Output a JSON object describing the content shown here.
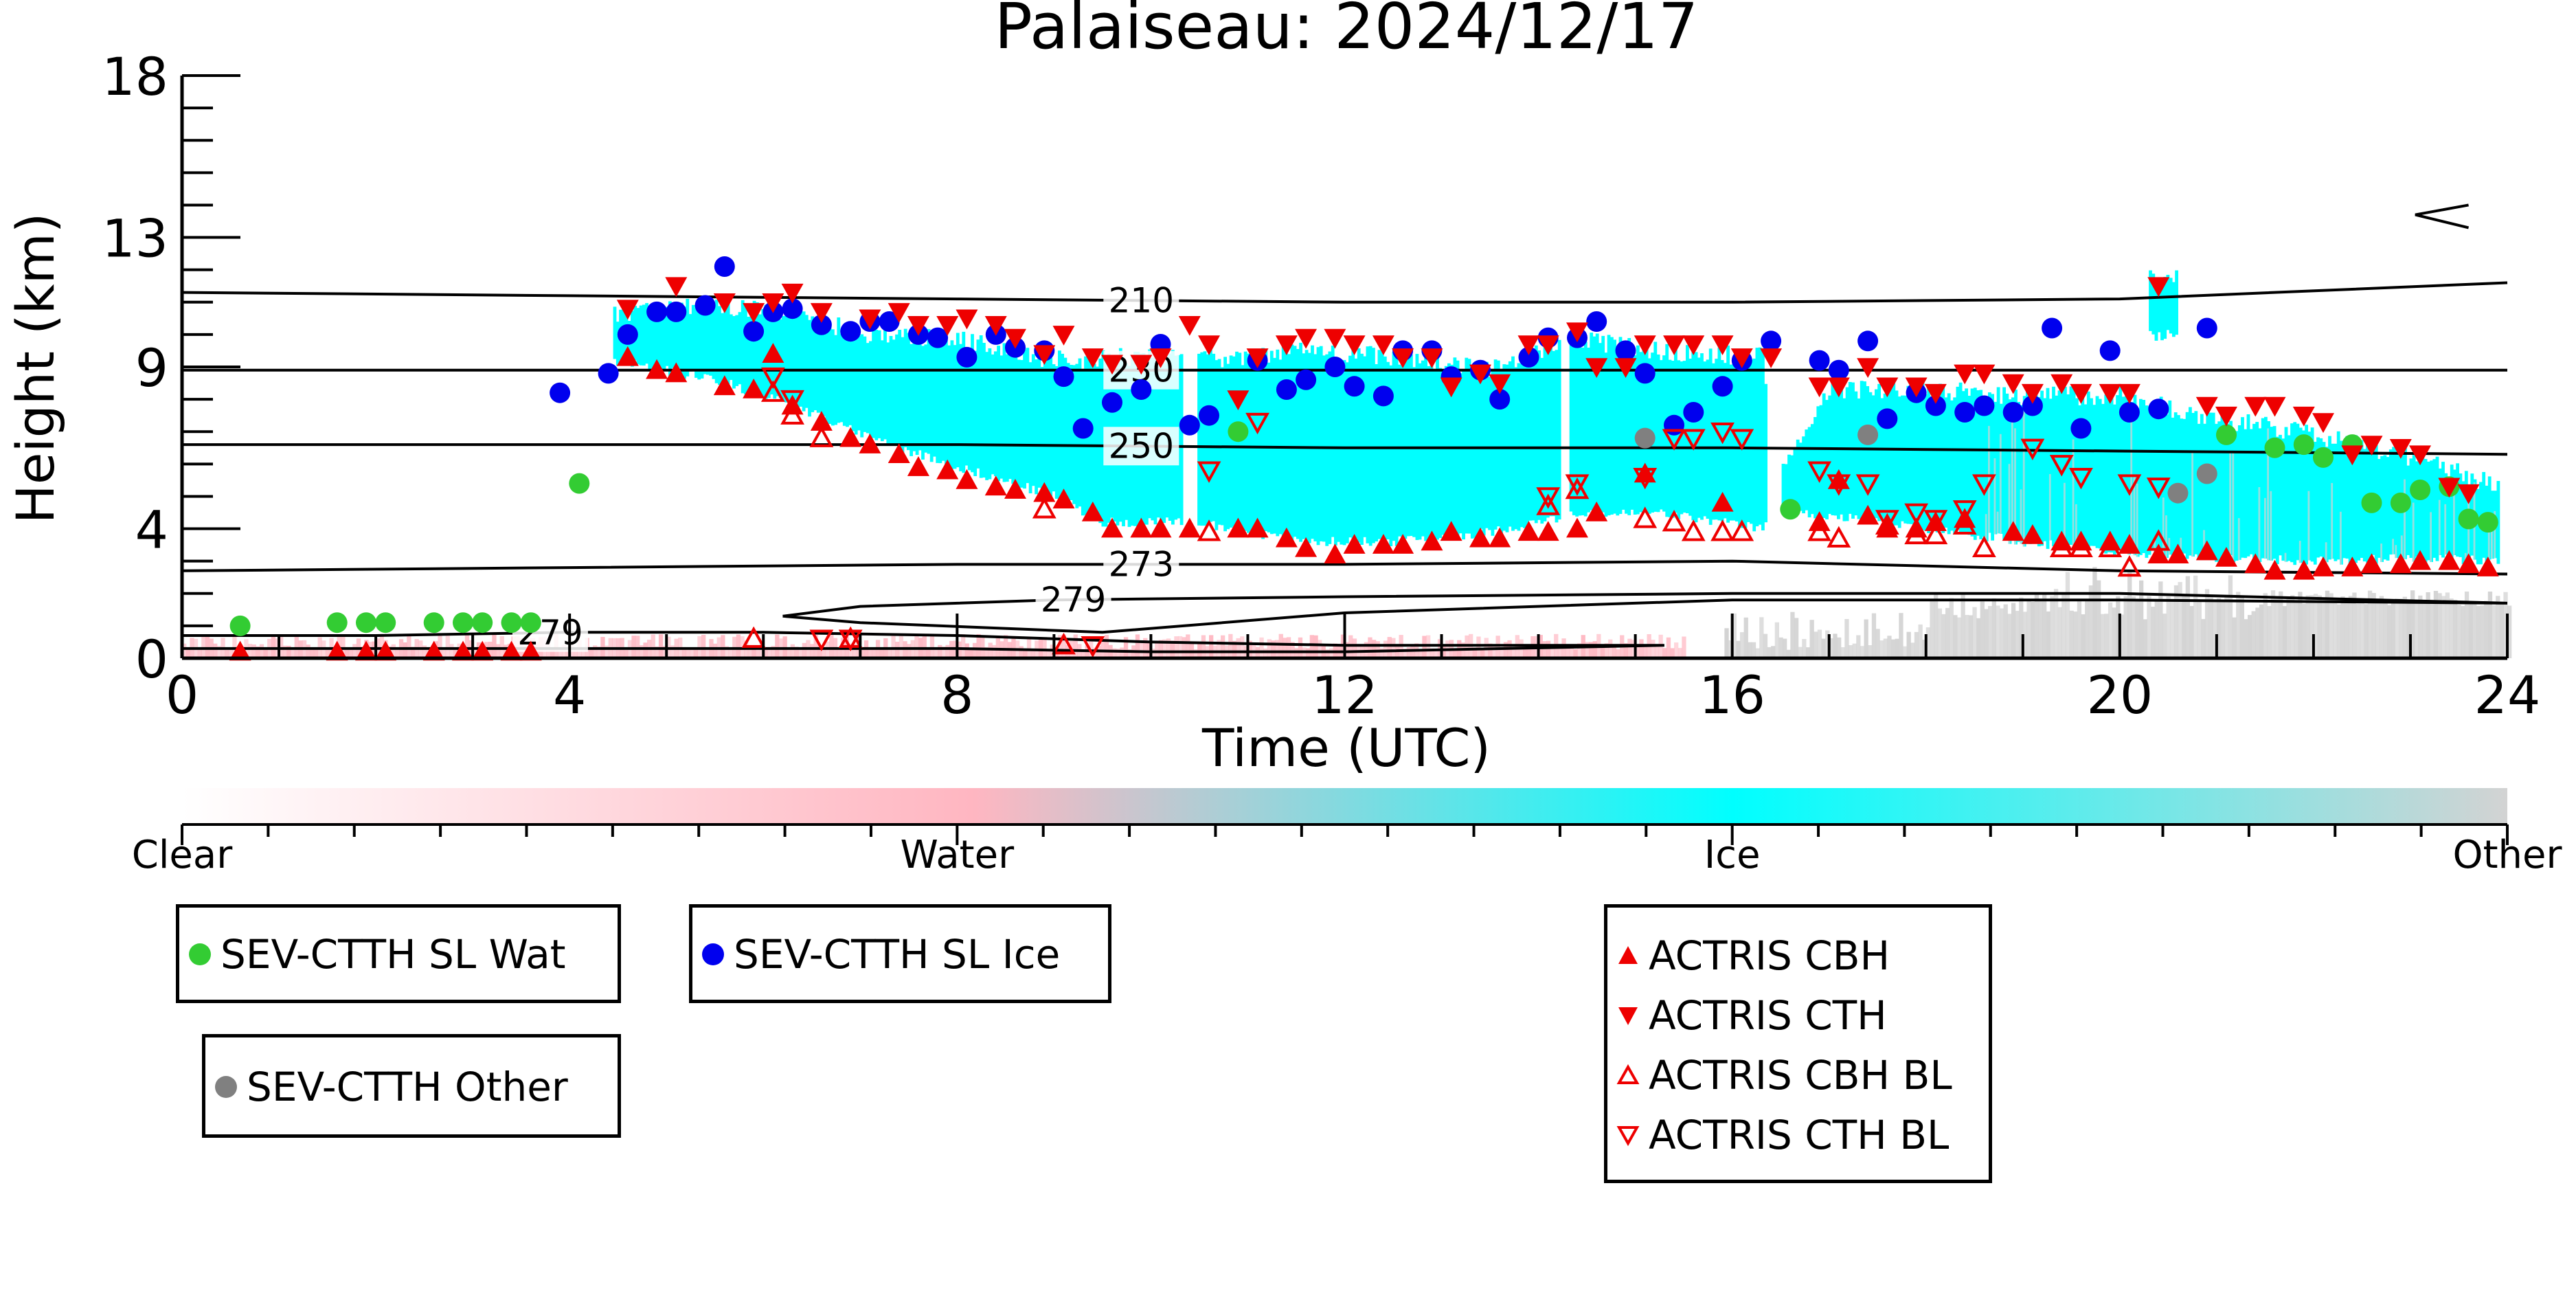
{
  "chart_data": {
    "type": "scatter",
    "title": "Palaiseau: 2024/12/17",
    "xlabel": "Time (UTC)",
    "ylabel": "Height (km)",
    "xlim": [
      0,
      24
    ],
    "ylim": [
      0,
      18
    ],
    "x_ticks": [
      0,
      4,
      8,
      12,
      16,
      20,
      24
    ],
    "y_ticks": [
      0,
      4,
      9,
      13,
      18
    ],
    "colorbar": {
      "labels": [
        "Clear",
        "Water",
        "Ice",
        "Other"
      ],
      "colors": [
        "#ffffff",
        "#ffb6c1",
        "#00ffff",
        "#d3d3d3"
      ]
    },
    "isotherms": [
      {
        "label": "210",
        "label_x": 9.9,
        "x": [
          0,
          4,
          8,
          12,
          16,
          20,
          24
        ],
        "y": [
          11.3,
          11.2,
          11.1,
          11.0,
          11.0,
          11.1,
          11.6
        ]
      },
      {
        "label": "230",
        "label_x": 9.9,
        "x": [
          0,
          4,
          8,
          12,
          16,
          20,
          24
        ],
        "y": [
          8.9,
          8.9,
          8.9,
          8.9,
          8.9,
          8.9,
          8.9
        ]
      },
      {
        "label": "250",
        "label_x": 9.9,
        "x": [
          0,
          4,
          8,
          12,
          16,
          20,
          24
        ],
        "y": [
          6.6,
          6.6,
          6.6,
          6.5,
          6.5,
          6.4,
          6.3
        ]
      },
      {
        "label": "273",
        "label_x": 9.9,
        "x": [
          0,
          4,
          8,
          12,
          16,
          20,
          24
        ],
        "y": [
          2.7,
          2.8,
          2.9,
          2.9,
          3.0,
          2.7,
          2.6
        ]
      },
      {
        "label": "279",
        "label_x": 9.2,
        "x": [
          6.2,
          7,
          9,
          12,
          16,
          20,
          24,
          20,
          16,
          12,
          9.5,
          7,
          6.2
        ],
        "y": [
          1.3,
          1.6,
          1.8,
          1.9,
          2.0,
          2.0,
          1.7,
          1.8,
          1.8,
          1.4,
          0.8,
          1.1,
          1.3
        ]
      },
      {
        "label": "279",
        "label_x": 3.8,
        "x": [
          0,
          2,
          4,
          6,
          8,
          10,
          12,
          15.3,
          12,
          10,
          8,
          6,
          4,
          2,
          0
        ],
        "y": [
          0.7,
          0.7,
          0.8,
          0.8,
          0.7,
          0.5,
          0.4,
          0.4,
          0.2,
          0.2,
          0.3,
          0.3,
          0.3,
          0.3,
          0.3
        ]
      }
    ],
    "series": [
      {
        "name": "SEV-CTTH SL Wat",
        "color": "#33cc33",
        "marker": "circle",
        "x": [
          0.6,
          1.6,
          1.9,
          2.1,
          2.6,
          2.9,
          3.1,
          3.4,
          3.6,
          4.1,
          10.9,
          16.6,
          21.1,
          21.6,
          21.9,
          22.1,
          22.4,
          22.6,
          22.9,
          23.1,
          23.4,
          23.6,
          23.8
        ],
        "y": [
          1.0,
          1.1,
          1.1,
          1.1,
          1.1,
          1.1,
          1.1,
          1.1,
          1.1,
          5.4,
          7.0,
          4.6,
          6.9,
          6.5,
          6.6,
          6.2,
          6.6,
          4.8,
          4.8,
          5.2,
          5.3,
          4.3,
          4.2
        ]
      },
      {
        "name": "SEV-CTTH SL Ice",
        "color": "#0000ee",
        "marker": "circle",
        "x": [
          3.9,
          4.4,
          4.6,
          4.9,
          5.1,
          5.4,
          5.6,
          5.9,
          6.1,
          6.3,
          6.6,
          6.9,
          7.1,
          7.3,
          7.6,
          7.8,
          8.1,
          8.4,
          8.6,
          8.9,
          9.1,
          9.3,
          9.6,
          9.9,
          10.1,
          10.4,
          10.6,
          11.1,
          11.4,
          11.6,
          11.9,
          12.1,
          12.4,
          12.6,
          12.9,
          13.1,
          13.4,
          13.6,
          13.9,
          14.1,
          14.4,
          14.6,
          14.9,
          15.1,
          15.4,
          15.6,
          15.9,
          16.1,
          16.4,
          16.9,
          17.1,
          17.4,
          17.6,
          17.9,
          18.1,
          18.4,
          18.6,
          18.9,
          19.1,
          19.3,
          19.6,
          19.9,
          20.1,
          20.4,
          20.9
        ],
        "y": [
          8.2,
          8.8,
          10.0,
          10.7,
          10.7,
          10.9,
          12.1,
          10.1,
          10.7,
          10.8,
          10.3,
          10.1,
          10.4,
          10.4,
          10.0,
          9.9,
          9.3,
          10.0,
          9.6,
          9.5,
          8.7,
          7.1,
          7.9,
          8.3,
          9.7,
          7.2,
          7.5,
          9.2,
          8.3,
          8.6,
          9.0,
          8.4,
          8.1,
          9.5,
          9.5,
          8.7,
          8.9,
          8.0,
          9.3,
          9.9,
          9.9,
          10.4,
          9.5,
          8.8,
          7.2,
          7.6,
          8.4,
          9.2,
          9.8,
          9.2,
          8.9,
          9.8,
          7.4,
          8.2,
          7.8,
          7.6,
          7.8,
          7.6,
          7.8,
          10.2,
          7.1,
          9.5,
          7.6,
          7.7,
          10.2
        ]
      },
      {
        "name": "SEV-CTTH Other",
        "color": "#808080",
        "marker": "circle",
        "x": [
          15.1,
          17.4,
          20.6,
          20.9
        ],
        "y": [
          6.8,
          6.9,
          5.1,
          5.7
        ]
      },
      {
        "name": "ACTRIS CBH",
        "color": "#ee0000",
        "marker": "triangle-up",
        "x": [
          0.6,
          1.6,
          1.9,
          2.1,
          2.6,
          2.9,
          3.1,
          3.4,
          3.6,
          4.6,
          4.9,
          5.1,
          5.6,
          5.9,
          6.1,
          6.3,
          6.6,
          6.9,
          7.1,
          7.4,
          7.6,
          7.9,
          8.1,
          8.4,
          8.6,
          8.9,
          9.1,
          9.4,
          9.6,
          9.9,
          10.1,
          10.4,
          10.9,
          11.1,
          11.4,
          11.6,
          11.9,
          12.1,
          12.4,
          12.6,
          12.9,
          13.1,
          13.4,
          13.6,
          13.9,
          14.1,
          14.4,
          14.6,
          15.1,
          15.9,
          16.9,
          17.1,
          17.4,
          17.6,
          17.9,
          18.1,
          18.4,
          18.9,
          19.1,
          19.4,
          19.6,
          19.9,
          20.1,
          20.4,
          20.6,
          20.9,
          21.1,
          21.4,
          21.6,
          21.9,
          22.1,
          22.4,
          22.6,
          22.9,
          23.1,
          23.4,
          23.6,
          23.8
        ],
        "y": [
          0.2,
          0.2,
          0.2,
          0.2,
          0.2,
          0.2,
          0.2,
          0.2,
          0.2,
          9.3,
          8.9,
          8.8,
          8.4,
          8.3,
          9.4,
          7.8,
          7.3,
          6.8,
          6.6,
          6.3,
          5.9,
          5.8,
          5.5,
          5.3,
          5.2,
          5.1,
          4.9,
          4.5,
          4.0,
          4.0,
          4.0,
          4.0,
          4.0,
          4.0,
          3.7,
          3.4,
          3.2,
          3.5,
          3.5,
          3.5,
          3.6,
          3.9,
          3.7,
          3.7,
          3.9,
          3.9,
          4.0,
          4.5,
          5.7,
          4.8,
          4.2,
          5.5,
          4.4,
          4.0,
          4.0,
          4.2,
          4.3,
          3.9,
          3.8,
          3.6,
          3.6,
          3.6,
          3.5,
          3.2,
          3.2,
          3.3,
          3.1,
          2.9,
          2.7,
          2.7,
          2.8,
          2.8,
          2.9,
          2.9,
          3.0,
          3.0,
          2.9,
          2.8
        ]
      },
      {
        "name": "ACTRIS CTH",
        "color": "#ee0000",
        "marker": "triangle-down",
        "x": [
          4.6,
          5.1,
          5.6,
          5.9,
          6.1,
          6.3,
          6.6,
          7.1,
          7.4,
          7.6,
          7.9,
          8.1,
          8.4,
          8.6,
          8.9,
          9.1,
          9.4,
          9.6,
          9.9,
          10.1,
          10.4,
          10.6,
          10.9,
          11.1,
          11.4,
          11.6,
          11.9,
          12.1,
          12.4,
          12.6,
          12.9,
          13.1,
          13.4,
          13.6,
          13.9,
          14.1,
          14.4,
          14.6,
          14.9,
          15.1,
          15.4,
          15.6,
          15.9,
          16.1,
          16.4,
          16.9,
          17.1,
          17.4,
          17.6,
          17.9,
          18.1,
          18.4,
          18.6,
          18.9,
          19.1,
          19.4,
          19.6,
          19.9,
          20.1,
          20.4,
          20.9,
          21.1,
          21.4,
          21.6,
          21.9,
          22.1,
          22.4,
          22.6,
          22.9,
          23.1,
          23.4,
          23.6
        ],
        "y": [
          10.8,
          11.5,
          11.0,
          10.7,
          11.0,
          11.3,
          10.7,
          10.5,
          10.7,
          10.3,
          10.3,
          10.5,
          10.3,
          9.9,
          9.4,
          10.0,
          9.3,
          9.1,
          9.1,
          9.3,
          10.3,
          9.7,
          8.0,
          9.3,
          9.7,
          9.9,
          9.9,
          9.7,
          9.7,
          9.3,
          9.3,
          8.4,
          8.8,
          8.5,
          9.7,
          9.7,
          10.1,
          9.0,
          9.0,
          9.7,
          9.7,
          9.7,
          9.7,
          9.3,
          9.3,
          8.4,
          8.4,
          9.0,
          8.4,
          8.4,
          8.2,
          8.8,
          8.8,
          8.5,
          8.2,
          8.5,
          8.2,
          8.2,
          8.2,
          11.5,
          7.8,
          7.5,
          7.8,
          7.8,
          7.5,
          7.3,
          6.3,
          6.6,
          6.5,
          6.3,
          5.3,
          5.1
        ]
      },
      {
        "name": "ACTRIS CBH BL",
        "color": "#ee0000",
        "marker": "triangle-up-open",
        "x": [
          5.9,
          6.1,
          6.3,
          6.6,
          6.9,
          8.9,
          9.1,
          10.6,
          14.1,
          14.4,
          15.1,
          15.4,
          15.6,
          15.9,
          16.1,
          16.9,
          17.1,
          17.6,
          17.9,
          18.1,
          18.4,
          18.6,
          19.4,
          19.6,
          19.9,
          20.1,
          20.4
        ],
        "y": [
          0.6,
          8.2,
          7.5,
          6.8,
          0.6,
          4.6,
          0.4,
          3.9,
          4.7,
          5.2,
          4.3,
          4.2,
          3.9,
          3.9,
          3.9,
          3.9,
          3.7,
          4.1,
          3.8,
          3.8,
          4.1,
          3.4,
          3.4,
          3.4,
          3.4,
          2.8,
          3.6
        ]
      },
      {
        "name": "ACTRIS CTH BL",
        "color": "#ee0000",
        "marker": "triangle-down-open",
        "x": [
          6.1,
          6.3,
          6.6,
          6.9,
          9.4,
          10.6,
          11.1,
          14.1,
          14.4,
          15.1,
          15.4,
          15.6,
          15.9,
          16.1,
          16.9,
          17.1,
          17.4,
          17.6,
          17.9,
          18.1,
          18.4,
          18.6,
          19.1,
          19.4,
          19.6,
          20.1,
          20.4
        ],
        "y": [
          8.7,
          8.0,
          0.6,
          0.6,
          0.4,
          5.8,
          7.3,
          5.0,
          5.4,
          5.6,
          6.8,
          6.8,
          7.0,
          6.8,
          5.8,
          5.4,
          5.4,
          4.3,
          4.5,
          4.3,
          4.6,
          5.4,
          6.5,
          6.0,
          5.6,
          5.4,
          5.3
        ]
      }
    ]
  },
  "legends": [
    {
      "entries": [
        {
          "label": "SEV-CTTH SL Wat",
          "marker": "circle",
          "color": "#33cc33"
        }
      ]
    },
    {
      "entries": [
        {
          "label": "SEV-CTTH SL Ice",
          "marker": "circle",
          "color": "#0000ee"
        }
      ]
    },
    {
      "entries": [
        {
          "label": "SEV-CTTH Other",
          "marker": "circle",
          "color": "#808080"
        }
      ]
    },
    {
      "entries": [
        {
          "label": "ACTRIS CBH",
          "marker": "triangle-up",
          "color": "#ee0000"
        },
        {
          "label": "ACTRIS CTH",
          "marker": "triangle-down",
          "color": "#ee0000"
        },
        {
          "label": "ACTRIS CBH BL",
          "marker": "triangle-up-open",
          "color": "#ee0000"
        },
        {
          "label": "ACTRIS CTH BL",
          "marker": "triangle-down-open",
          "color": "#ee0000"
        }
      ]
    }
  ]
}
